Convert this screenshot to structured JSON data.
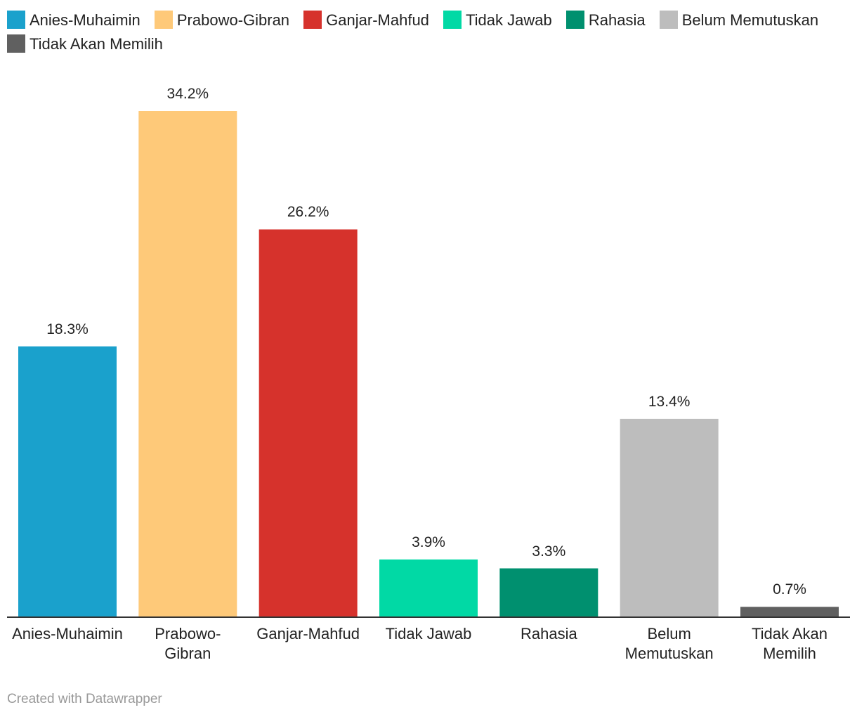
{
  "chart_data": {
    "type": "bar",
    "categories": [
      "Anies-Muhaimin",
      "Prabowo-Gibran",
      "Ganjar-Mahfud",
      "Tidak Jawab",
      "Rahasia",
      "Belum Memutuskan",
      "Tidak Akan Memilih"
    ],
    "values": [
      18.3,
      34.2,
      26.2,
      3.9,
      3.3,
      13.4,
      0.7
    ],
    "value_labels": [
      "18.3%",
      "34.2%",
      "26.2%",
      "3.9%",
      "3.3%",
      "13.4%",
      "0.7%"
    ],
    "colors": [
      "#1aa1cc",
      "#fec979",
      "#d6322c",
      "#01d9a5",
      "#00906f",
      "#bdbdbd",
      "#606060"
    ],
    "ylim": [
      0,
      34.2
    ],
    "footer": "Created with Datawrapper"
  }
}
